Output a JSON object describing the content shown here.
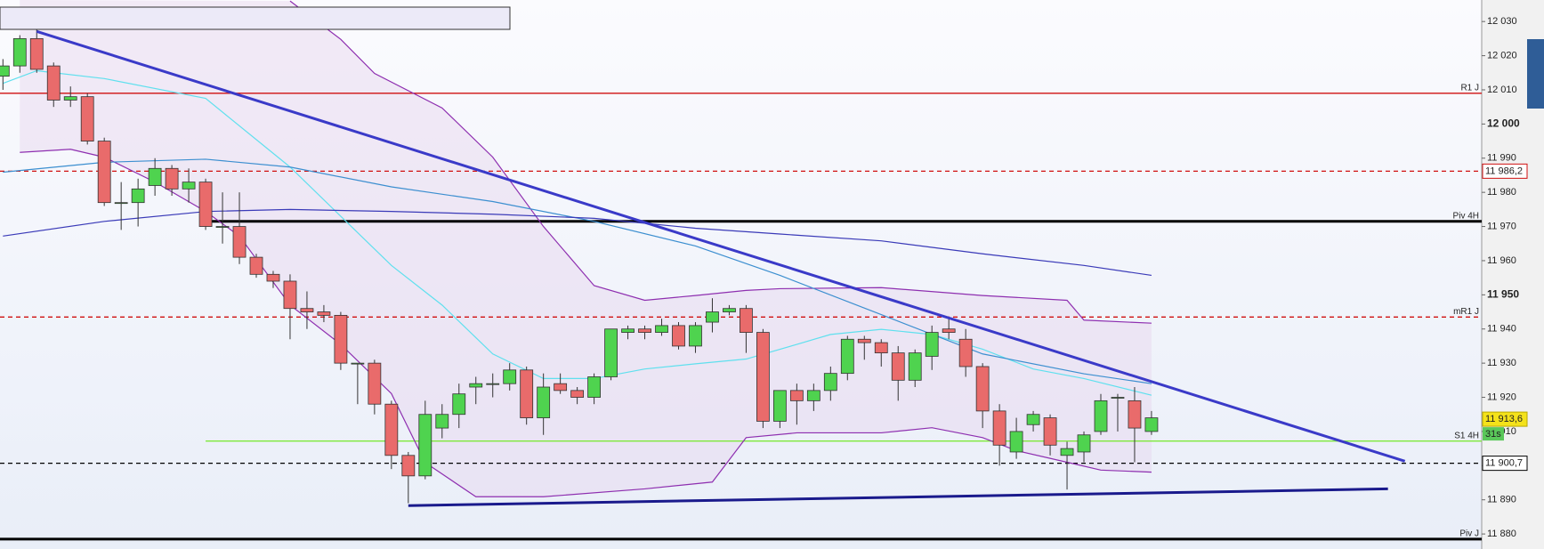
{
  "chart_data": {
    "type": "candlestick",
    "ylim": [
      11875.6,
      12036.3
    ],
    "yticks": [
      {
        "value": 11880,
        "label": "11 880"
      },
      {
        "value": 11890,
        "label": "11 890"
      },
      {
        "value": 11900,
        "label": "11 900"
      },
      {
        "value": 11910,
        "label": "11 910"
      },
      {
        "value": 11920,
        "label": "11 920"
      },
      {
        "value": 11930,
        "label": "11 930"
      },
      {
        "value": 11940,
        "label": "11 940"
      },
      {
        "value": 11950,
        "label": "11 950"
      },
      {
        "value": 11960,
        "label": "11 960"
      },
      {
        "value": 11970,
        "label": "11 970"
      },
      {
        "value": 11980,
        "label": "11 980"
      },
      {
        "value": 11990,
        "label": "11 990"
      },
      {
        "value": 12000,
        "label": "12 000"
      },
      {
        "value": 12010,
        "label": "12 010"
      },
      {
        "value": 12020,
        "label": "12 020"
      },
      {
        "value": 12030,
        "label": "12 030"
      }
    ],
    "up_color": "#4fd34f",
    "down_color": "#e96b6b",
    "open": [
      12014,
      12017,
      12025,
      12017,
      12007,
      12008,
      11995,
      11977,
      11977,
      11982,
      11987,
      11981,
      11983,
      11970,
      11970,
      11961,
      11956,
      11954,
      11946,
      11945,
      11944,
      11930,
      11930,
      11918,
      11903,
      11897,
      11911,
      11915,
      11923,
      11924,
      11924,
      11928,
      11914,
      11924,
      11922,
      11920,
      11926,
      11939,
      11940,
      11939,
      11941,
      11935,
      11942,
      11945,
      11946,
      11939,
      11913,
      11922,
      11919,
      11922,
      11927,
      11937,
      11936,
      11933,
      11925,
      11932,
      11940,
      11937,
      11929,
      11916,
      11904,
      11912,
      11914,
      11903,
      11904,
      11910,
      11920,
      11919,
      11910
    ],
    "high": [
      12019,
      12026,
      12028,
      12018,
      12011,
      12009,
      11996,
      11983,
      11984,
      11990,
      11988,
      11987,
      11984,
      11980,
      11980,
      11962,
      11957,
      11956,
      11951,
      11947,
      11945,
      11930,
      11931,
      11919,
      11904,
      11919,
      11918,
      11924,
      11926,
      11927,
      11930,
      11929,
      11927,
      11927,
      11923,
      11927,
      11940,
      11941,
      11941,
      11943,
      11942,
      11942,
      11949,
      11947,
      11947,
      11940,
      11922,
      11924,
      11924,
      11929,
      11938,
      11938,
      11937,
      11935,
      11934,
      11941,
      11943,
      11940,
      11930,
      11918,
      11914,
      11916,
      11915,
      11907,
      11910,
      11921,
      11921,
      11923,
      11916
    ],
    "low": [
      12010,
      12015,
      12015,
      12005,
      12005,
      11994,
      11976,
      11969,
      11970,
      11979,
      11979,
      11977,
      11969,
      11965,
      11959,
      11955,
      11952,
      11937,
      11940,
      11942,
      11928,
      11918,
      11915,
      11899,
      11889,
      11896,
      11908,
      11911,
      11918,
      11920,
      11922,
      11912,
      11909,
      11921,
      11918,
      11918,
      11925,
      11937,
      11937,
      11938,
      11934,
      11933,
      11939,
      11944,
      11933,
      11911,
      11911,
      11912,
      11916,
      11919,
      11925,
      11931,
      11929,
      11919,
      11923,
      11928,
      11937,
      11926,
      11911,
      11900,
      11902,
      11910,
      11903,
      11893,
      11901,
      11909,
      11910,
      11901,
      11909
    ],
    "close": [
      12017,
      12025,
      12016,
      12007,
      12008,
      11995,
      11977,
      11977,
      11981,
      11987,
      11981,
      11983,
      11970,
      11970,
      11961,
      11956,
      11954,
      11946,
      11945,
      11944,
      11930,
      11930,
      11918,
      11903,
      11897,
      11915,
      11915,
      11921,
      11924,
      11924,
      11928,
      11914,
      11923,
      11922,
      11920,
      11926,
      11940,
      11940,
      11939,
      11941,
      11935,
      11941,
      11945,
      11946,
      11939,
      11913,
      11922,
      11919,
      11922,
      11927,
      11937,
      11936,
      11933,
      11925,
      11933,
      11939,
      11939,
      11929,
      11916,
      11906,
      11910,
      11915,
      11906,
      11905,
      11909,
      11919,
      11920,
      11911,
      11914
    ],
    "overlays": [
      {
        "color": "#8e2fb0",
        "x": [
          17,
          20,
          22,
          26,
          29,
          32,
          35,
          38,
          41,
          44,
          46,
          52,
          58,
          63,
          64,
          68
        ],
        "values": [
          12036,
          12024.8,
          12014.8,
          12004.7,
          11990.3,
          11970,
          11952.7,
          11948.4,
          11949.8,
          11951.3,
          11951.8,
          11952.1,
          11949.8,
          11948.4,
          11942.6,
          11941.7
        ]
      },
      {
        "color": "#8e2fb0",
        "x": [
          1,
          4,
          6,
          9,
          12,
          14,
          17,
          20,
          23,
          25,
          28,
          32,
          38,
          42,
          44,
          47,
          52,
          55,
          58,
          60,
          63,
          65,
          68
        ],
        "values": [
          11991.7,
          11992.6,
          11990.3,
          11983,
          11974.4,
          11967.2,
          11947,
          11935.5,
          11921.1,
          11900.9,
          11890.9,
          11890.9,
          11893.2,
          11895.2,
          11908.2,
          11909.6,
          11909.6,
          11911.1,
          11908.2,
          11904.4,
          11901,
          11898.7,
          11898.1
        ]
      },
      {
        "color": "#5fe0ee",
        "x": [
          0,
          2,
          6,
          12,
          17,
          20,
          23,
          26,
          29,
          32,
          35,
          38,
          41,
          44,
          47,
          49,
          52,
          55,
          58,
          61,
          64,
          68
        ],
        "values": [
          12011.9,
          12015.6,
          12013.3,
          12007.5,
          11987.4,
          11973,
          11958.6,
          11947,
          11932.7,
          11925.5,
          11925.5,
          11928.3,
          11929.8,
          11931.2,
          11935.5,
          11938.4,
          11939.9,
          11938.4,
          11934.1,
          11928.3,
          11925.5,
          11920.6
        ]
      },
      {
        "color": "#3c8fd0",
        "x": [
          0,
          6,
          12,
          17,
          23,
          29,
          35,
          41,
          46,
          52,
          58,
          64,
          68
        ],
        "values": [
          11985.9,
          11988.8,
          11989.7,
          11987.4,
          11981.6,
          11977.3,
          11971.5,
          11964.3,
          11955.7,
          11944.2,
          11932.7,
          11926.9,
          11924
        ]
      },
      {
        "color": "#3a3ab8",
        "x": [
          0,
          6,
          12,
          17,
          23,
          29,
          35,
          41,
          46,
          52,
          58,
          64,
          68
        ],
        "values": [
          11967.2,
          11971.5,
          11974.4,
          11975,
          11974.4,
          11973.6,
          11972.4,
          11969.5,
          11967.8,
          11965.8,
          11962,
          11958.6,
          11955.7
        ]
      }
    ],
    "trendlines": [
      {
        "color": "#3a3ac8",
        "x": [
          2,
          83
        ],
        "values": [
          12027.1,
          11901.3
        ]
      },
      {
        "color": "#1a1a8c",
        "x": [
          24,
          82
        ],
        "values": [
          11888.3,
          11893.2
        ]
      }
    ],
    "levels": [
      {
        "label": "R1 J",
        "value": 12009,
        "color": "#d01010",
        "style": "solid"
      },
      {
        "value": 11986.2,
        "value_label": "11 986,2",
        "color": "#d01010",
        "style": "dashed"
      },
      {
        "label": "Piv 4H",
        "value": 11971.5,
        "color": "#000000",
        "style": "thick",
        "start": 12
      },
      {
        "label": "mR1 J",
        "value": 11943.5,
        "color": "#d01010",
        "style": "dashed"
      },
      {
        "label": "S1 4H",
        "value": 11907.2,
        "color": "#7ee83a",
        "style": "solid",
        "start": 12
      },
      {
        "value": 11900.7,
        "value_label": "11 900,7",
        "color": "#000000",
        "style": "dashed"
      },
      {
        "label": "Piv J",
        "value": 11878.5,
        "color": "#000000",
        "style": "thick"
      }
    ],
    "current": {
      "value": 11913.6,
      "label": "11 913,6",
      "timer": "31s"
    }
  }
}
